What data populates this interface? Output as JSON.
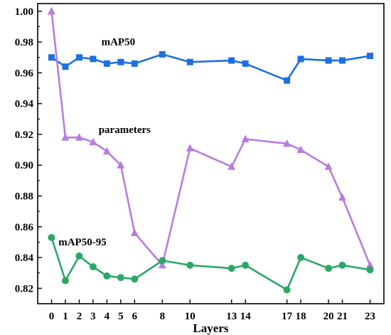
{
  "chart_data": {
    "type": "line",
    "xlabel": "Layers",
    "ylabel": "",
    "ylim": [
      0.81,
      1.005
    ],
    "xlim": [
      -1,
      24
    ],
    "grid": false,
    "legend": "none",
    "x_ticks": [
      0,
      1,
      2,
      3,
      4,
      5,
      6,
      8,
      10,
      13,
      14,
      17,
      18,
      20,
      21,
      23
    ],
    "x_tick_labels": [
      "0",
      "1",
      "2",
      "3",
      "4",
      "5",
      "6",
      "8",
      "10",
      "13",
      "14",
      "17",
      "18",
      "20",
      "21",
      "23"
    ],
    "y_ticks": [
      0.82,
      0.84,
      0.86,
      0.88,
      0.9,
      0.92,
      0.94,
      0.96,
      0.98,
      1.0
    ],
    "y_tick_labels": [
      "0.82",
      "0.84",
      "0.86",
      "0.88",
      "0.90",
      "0.92",
      "0.94",
      "0.96",
      "0.98",
      "1.00"
    ],
    "series": [
      {
        "name": "mAP50",
        "color": "#1f6fe0",
        "marker": "square",
        "x": [
          0,
          1,
          2,
          3,
          4,
          5,
          6,
          8,
          10,
          13,
          14,
          17,
          18,
          20,
          21,
          23
        ],
        "values": [
          0.97,
          0.964,
          0.97,
          0.969,
          0.966,
          0.967,
          0.966,
          0.972,
          0.967,
          0.968,
          0.966,
          0.955,
          0.969,
          0.968,
          0.968,
          0.971
        ]
      },
      {
        "name": "parameters",
        "color": "#b87ce0",
        "marker": "triangle",
        "x": [
          0,
          1,
          2,
          3,
          4,
          5,
          6,
          8,
          10,
          13,
          14,
          17,
          18,
          20,
          21,
          23
        ],
        "values": [
          1.0,
          0.918,
          0.918,
          0.915,
          0.909,
          0.9,
          0.856,
          0.835,
          0.911,
          0.899,
          0.917,
          0.914,
          0.91,
          0.899,
          0.879,
          0.835
        ]
      },
      {
        "name": "mAP50-95",
        "color": "#2aa866",
        "marker": "circle",
        "x": [
          0,
          1,
          2,
          3,
          4,
          5,
          6,
          8,
          10,
          13,
          14,
          17,
          18,
          20,
          21,
          23
        ],
        "values": [
          0.853,
          0.825,
          0.841,
          0.834,
          0.828,
          0.827,
          0.826,
          0.838,
          0.835,
          0.833,
          0.835,
          0.819,
          0.84,
          0.833,
          0.835,
          0.832
        ]
      }
    ],
    "annotations": [
      {
        "text": "mAP50",
        "series": "mAP50"
      },
      {
        "text": "parameters",
        "series": "parameters"
      },
      {
        "text": "mAP50-95",
        "series": "mAP50-95"
      }
    ]
  }
}
